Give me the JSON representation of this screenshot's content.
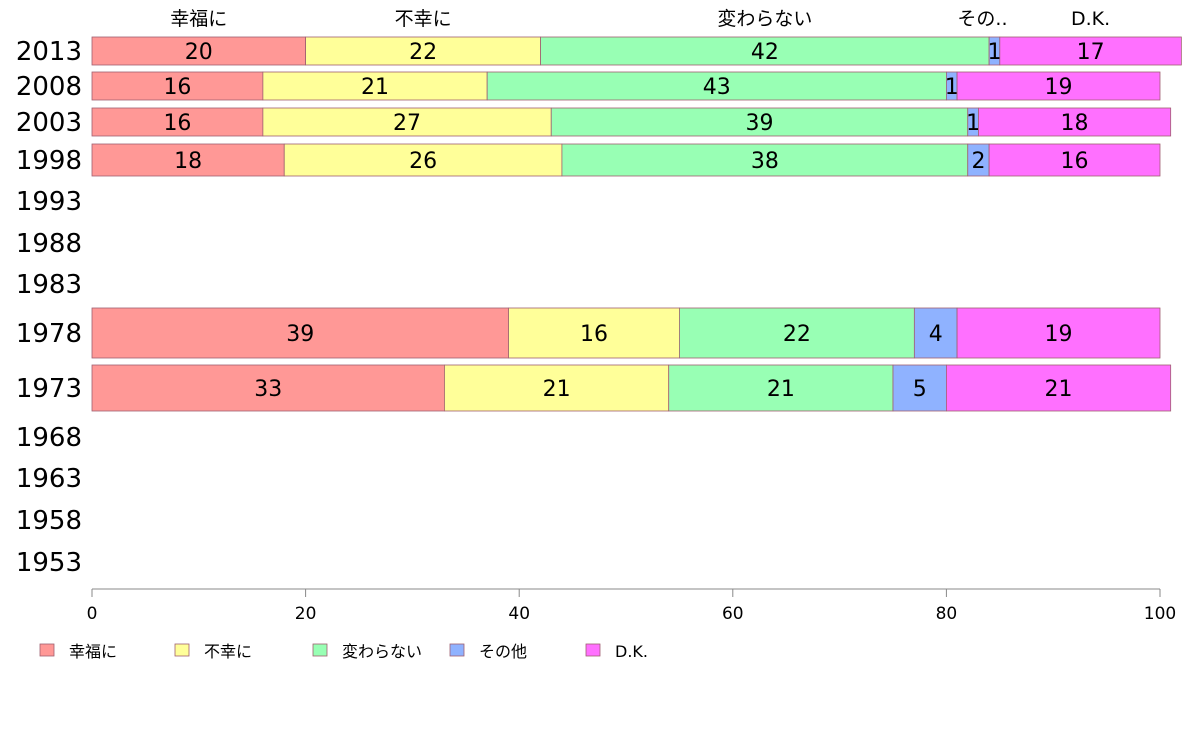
{
  "chart_data": {
    "type": "bar",
    "orientation": "horizontal",
    "stacked": true,
    "categories": [
      "2013",
      "2008",
      "2003",
      "1998",
      "1993",
      "1988",
      "1983",
      "1978",
      "1973",
      "1968",
      "1963",
      "1958",
      "1953"
    ],
    "series": [
      {
        "name": "幸福に",
        "color": "#ff9896",
        "values": [
          20,
          16,
          16,
          18,
          null,
          null,
          null,
          39,
          33,
          null,
          null,
          null,
          null
        ]
      },
      {
        "name": "不幸に",
        "color": "#ffff99",
        "values": [
          22,
          21,
          27,
          26,
          null,
          null,
          null,
          16,
          21,
          null,
          null,
          null,
          null
        ]
      },
      {
        "name": "変わらない",
        "color": "#98ffb4",
        "values": [
          42,
          43,
          39,
          38,
          null,
          null,
          null,
          22,
          21,
          null,
          null,
          null,
          null
        ]
      },
      {
        "name": "その他",
        "color": "#8fb2ff",
        "values": [
          1,
          1,
          1,
          2,
          null,
          null,
          null,
          4,
          5,
          null,
          null,
          null,
          null
        ]
      },
      {
        "name": "D.K.",
        "color": "#ff70ff",
        "values": [
          17,
          19,
          18,
          16,
          null,
          null,
          null,
          19,
          21,
          null,
          null,
          null,
          null
        ]
      }
    ],
    "top_labels": [
      "幸福に",
      "不幸に",
      "変わらない",
      "その..",
      "D.K."
    ],
    "xlim": [
      0,
      100
    ],
    "xticks": [
      0,
      20,
      40,
      60,
      80,
      100
    ],
    "title": "",
    "xlabel": "",
    "ylabel": "",
    "grid": false,
    "legend_position": "bottom-left"
  }
}
